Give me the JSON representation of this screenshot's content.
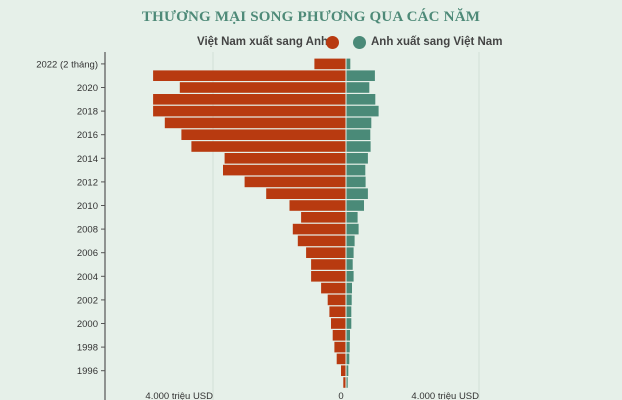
{
  "chart_data": {
    "type": "bar",
    "orientation": "horizontal-diverging",
    "title": "THƯƠNG MẠI SONG PHƯƠNG QUA CÁC NĂM",
    "unit": "triệu USD",
    "categories": [
      "2022 (2 tháng)",
      "2021",
      "2020",
      "2019",
      "2018",
      "2017",
      "2016",
      "2015",
      "2014",
      "2013",
      "2012",
      "2011",
      "2010",
      "2009",
      "2008",
      "2007",
      "2006",
      "2005",
      "2004",
      "2003",
      "2002",
      "2001",
      "2000",
      "1999",
      "1998",
      "1997",
      "1996",
      "1995"
    ],
    "y_tick_labels": [
      "2022 (2 tháng)",
      "2020",
      "2018",
      "2016",
      "2014",
      "2012",
      "2010",
      "2008",
      "2006",
      "2004",
      "2002",
      "2000",
      "1998",
      "1996"
    ],
    "x_tick_labels": [
      "4.000 triệu USD",
      "0",
      "4.000 triệu USD"
    ],
    "xlim": [
      -4000,
      4000
    ],
    "legend_position": "top",
    "series": [
      {
        "name": "Việt Nam xuất sang Anh",
        "color": "#b83a10",
        "side": "left",
        "values": [
          950,
          5800,
          5000,
          5800,
          5800,
          5450,
          4950,
          4650,
          3650,
          3700,
          3050,
          2400,
          1700,
          1350,
          1600,
          1450,
          1200,
          1050,
          1050,
          750,
          550,
          500,
          450,
          400,
          350,
          280,
          150,
          80
        ]
      },
      {
        "name": "Anh xuất sang Việt Nam",
        "color": "#4a8a78",
        "side": "right",
        "values": [
          130,
          870,
          700,
          880,
          980,
          760,
          730,
          740,
          660,
          580,
          590,
          660,
          540,
          350,
          380,
          260,
          230,
          200,
          230,
          180,
          170,
          160,
          160,
          120,
          110,
          100,
          70,
          50
        ]
      }
    ]
  }
}
